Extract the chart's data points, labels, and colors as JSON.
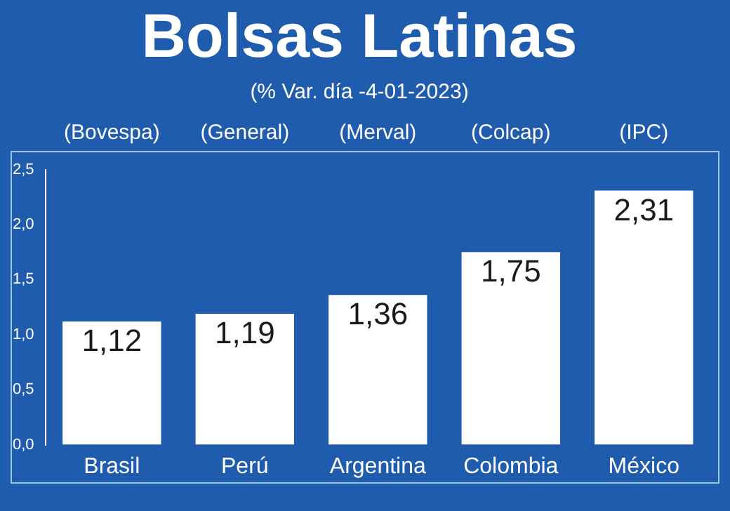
{
  "chart_data": {
    "type": "bar",
    "title": "Bolsas Latinas",
    "subtitle": "(% Var. día -4-01-2023)",
    "categories": [
      "Brasil",
      "Perú",
      "Argentina",
      "Colombia",
      "México"
    ],
    "values": [
      1.12,
      1.19,
      1.36,
      1.75,
      2.31
    ],
    "value_labels": [
      "1,12",
      "1,19",
      "1,36",
      "1,75",
      "2,31"
    ],
    "color": "#ffffff",
    "ylim": [
      0,
      2.5
    ],
    "yticks": [
      {
        "value": 0,
        "label": "0,0"
      },
      {
        "value": 0.5,
        "label": "0,5"
      },
      {
        "value": 1,
        "label": "1,0"
      },
      {
        "value": 1.5,
        "label": "1,5"
      },
      {
        "value": 2,
        "label": "2,0"
      },
      {
        "value": 2.5,
        "label": "2,5"
      }
    ],
    "annotations": [
      "(Bovespa)",
      "(General)",
      "(Merval)",
      "(Colcap)",
      "(IPC)"
    ],
    "grid": false,
    "legend": false
  }
}
